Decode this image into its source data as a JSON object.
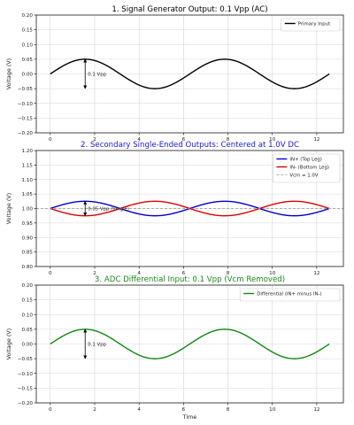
{
  "xlabel": "Time",
  "chart_data": [
    {
      "type": "line",
      "title": "1. Signal Generator Output: 0.1 Vpp (AC)",
      "title_color": "#000000",
      "xlabel": "",
      "ylabel": "Voltage (V)",
      "xlim": [
        -0.63,
        13.2
      ],
      "ylim": [
        -0.2,
        0.2
      ],
      "xticks": [
        0,
        2,
        4,
        6,
        8,
        10,
        12
      ],
      "yticks": [
        -0.2,
        -0.15,
        -0.1,
        -0.05,
        0.0,
        0.05,
        0.1,
        0.15,
        0.2
      ],
      "ytick_labels": [
        "−0.20",
        "−0.15",
        "−0.10",
        "−0.05",
        "0.00",
        "0.05",
        "0.10",
        "0.15",
        "0.20"
      ],
      "grid": true,
      "legend": "top-right",
      "series": [
        {
          "name": "Primary Input",
          "color": "#000000",
          "dash": "",
          "function": "sin",
          "offset": 0.0,
          "amplitude": 0.05,
          "x_range": [
            0,
            12.566
          ]
        }
      ],
      "annotation": {
        "text": "0.1 Vpp",
        "x": 1.5708,
        "y_from": -0.05,
        "y_to": 0.05
      }
    },
    {
      "type": "line",
      "title": "2. Secondary Single-Ended Outputs: Centered at 1.0V DC",
      "title_color": "#1a1acc",
      "xlabel": "",
      "ylabel": "Voltage (V)",
      "xlim": [
        -0.63,
        13.2
      ],
      "ylim": [
        0.8,
        1.2
      ],
      "xticks": [
        0,
        2,
        4,
        6,
        8,
        10,
        12
      ],
      "yticks": [
        0.8,
        0.85,
        0.9,
        0.95,
        1.0,
        1.05,
        1.1,
        1.15,
        1.2
      ],
      "ytick_labels": [
        "0.80",
        "0.85",
        "0.90",
        "0.95",
        "1.00",
        "1.05",
        "1.10",
        "1.15",
        "1.20"
      ],
      "grid": true,
      "legend": "top-right",
      "series": [
        {
          "name": "IN+ (Top Leg)",
          "color": "#0000cc",
          "dash": "",
          "function": "sin",
          "offset": 1.0,
          "amplitude": 0.025,
          "x_range": [
            0,
            12.566
          ]
        },
        {
          "name": "IN- (Bottom Leg)",
          "color": "#dd0000",
          "dash": "",
          "function": "sin",
          "offset": 1.0,
          "amplitude": -0.025,
          "x_range": [
            0,
            12.566
          ]
        },
        {
          "name": "Vcm = 1.0V",
          "color": "#999999",
          "dash": "3,2",
          "function": "const",
          "offset": 1.0,
          "amplitude": 0,
          "x_range": [
            -0.63,
            13.2
          ]
        }
      ],
      "annotation": {
        "text": "0.05 Vpp (Single)",
        "x": 1.5708,
        "y_from": 0.975,
        "y_to": 1.025
      }
    },
    {
      "type": "line",
      "title": "3. ADC Differential Input: 0.1 Vpp (Vcm Removed)",
      "title_color": "#1a8a1a",
      "xlabel": "Time",
      "ylabel": "Voltage (V)",
      "xlim": [
        -0.63,
        13.2
      ],
      "ylim": [
        -0.2,
        0.2
      ],
      "xticks": [
        0,
        2,
        4,
        6,
        8,
        10,
        12
      ],
      "yticks": [
        -0.2,
        -0.15,
        -0.1,
        -0.05,
        0.0,
        0.05,
        0.1,
        0.15,
        0.2
      ],
      "ytick_labels": [
        "−0.20",
        "−0.15",
        "−0.10",
        "−0.05",
        "0.00",
        "0.05",
        "0.10",
        "0.15",
        "0.20"
      ],
      "grid": true,
      "legend": "top-right",
      "series": [
        {
          "name": "Differential (IN+ minus IN-)",
          "color": "#118811",
          "dash": "",
          "function": "sin",
          "offset": 0.0,
          "amplitude": 0.05,
          "x_range": [
            0,
            12.566
          ]
        }
      ],
      "annotation": {
        "text": "0.1 Vpp",
        "x": 1.5708,
        "y_from": -0.05,
        "y_to": 0.05
      }
    }
  ]
}
